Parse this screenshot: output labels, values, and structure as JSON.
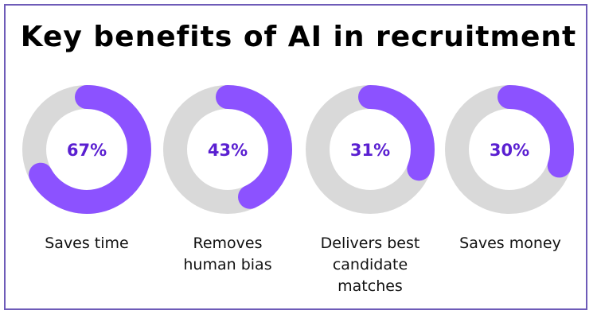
{
  "title": "Key benefits of AI in recruitment",
  "colors": {
    "track": "#d9d9d9",
    "fill": "#8c52ff",
    "value_text": "#5a1fd1",
    "border": "#6e5bb8"
  },
  "chart_data": {
    "type": "donut",
    "title": "Key benefits of AI in recruitment",
    "items": [
      {
        "label": "Saves time",
        "value": 67,
        "display": "67%"
      },
      {
        "label": "Removes\nhuman bias",
        "value": 43,
        "display": "43%"
      },
      {
        "label": "Delivers best\ncandidate\nmatches",
        "value": 31,
        "display": "31%"
      },
      {
        "label": "Saves money",
        "value": 30,
        "display": "30%"
      }
    ]
  }
}
